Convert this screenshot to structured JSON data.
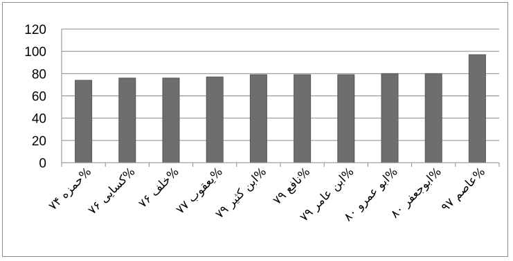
{
  "chart_data": {
    "type": "bar",
    "title": "",
    "xlabel": "",
    "ylabel": "",
    "categories": [
      "حمزه ۷۴%",
      "کسایی ۷۶%",
      "خلف ۷۶%",
      "یعقوب ۷۷%",
      "ابن کثیر ۷۹%",
      "نافع ۷۹%",
      "ابن عامر ۷۹%",
      "ابو عمرو ۸۰%",
      "ابوجعفر ۸۰%",
      "عاصم ۹۷%"
    ],
    "series": [
      {
        "values": [
          74,
          76,
          76,
          77,
          79,
          79,
          79,
          80,
          80,
          97
        ]
      }
    ],
    "ylim": [
      0,
      120
    ],
    "yticks": [
      0,
      20,
      40,
      60,
      80,
      100,
      120
    ],
    "grid": true,
    "legend": "none",
    "colors": {
      "bar": "#6e6e6e",
      "bar_stroke": "#555555",
      "grid": "#8a8a8a",
      "axis": "#8a8a8a"
    }
  }
}
